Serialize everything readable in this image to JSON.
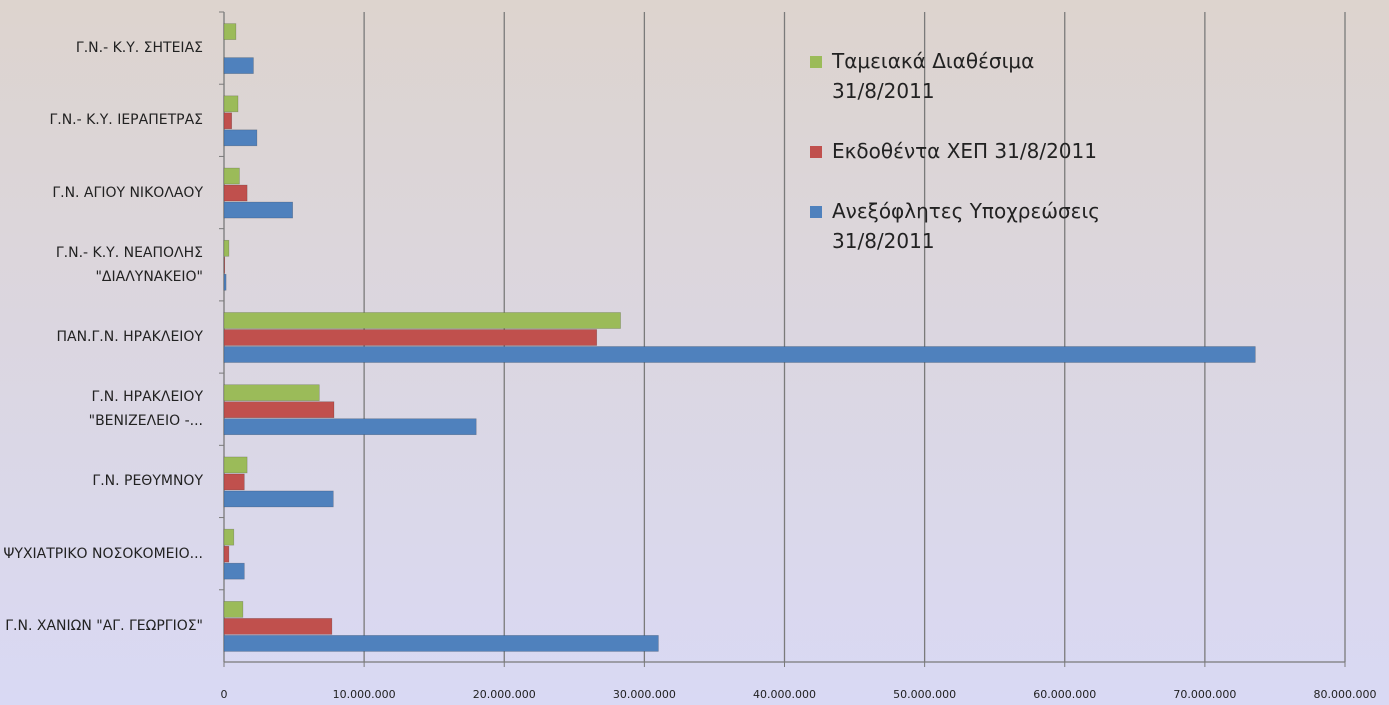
{
  "chart_data": {
    "type": "hbar",
    "categories": [
      "Γ.Ν.- Κ.Υ. ΣΗΤΕΙΑΣ",
      "Γ.Ν.- Κ.Υ. ΙΕΡΑΠΕΤΡΑΣ",
      "Γ.Ν. ΑΓΙΟΥ ΝΙΚΟΛΑΟΥ",
      "Γ.Ν.- Κ.Υ. ΝΕΑΠΟΛΗΣ \"ΔΙΑΛΥΝΑΚΕΙΟ\"",
      "ΠΑΝ.Γ.Ν. ΗΡΑΚΛΕΙΟΥ",
      "Γ.Ν. ΗΡΑΚΛΕΙΟΥ \"ΒΕΝΙΖΕΛΕΙΟ -...",
      "Γ.Ν. ΡΕΘΥΜΝΟΥ",
      "ΨΥΧΙΑΤΡΙΚΟ ΝΟΣΟΚΟΜΕΙΟ...",
      "Γ.Ν. ΧΑΝΙΩΝ \"ΑΓ. ΓΕΩΡΓΙΟΣ\""
    ],
    "series": [
      {
        "name": "Ταμειακά Διαθέσιμα 31/8/2011",
        "color": "#9bbb59",
        "values": [
          850000,
          1000000,
          1100000,
          350000,
          28300000,
          6800000,
          1650000,
          700000,
          1350000
        ]
      },
      {
        "name": "Εκδοθέντα ΧΕΠ 31/8/2011",
        "color": "#c0504d",
        "values": [
          0,
          550000,
          1650000,
          50000,
          26600000,
          7850000,
          1450000,
          350000,
          7700000
        ]
      },
      {
        "name": "Ανεξόφλητες Υποχρεώσεις 31/8/2011",
        "color": "#4f81bd",
        "values": [
          2100000,
          2350000,
          4900000,
          150000,
          73600000,
          18000000,
          7800000,
          1450000,
          31000000
        ]
      }
    ],
    "xlim": [
      0,
      80000000
    ],
    "xticks": [
      0,
      {
        "value": 10000000,
        "label": "10.000.000"
      },
      {
        "value": 20000000,
        "label": "20.000.000"
      },
      {
        "value": 30000000,
        "label": "30.000.000"
      },
      {
        "value": 40000000,
        "label": "40.000.000"
      },
      {
        "value": 50000000,
        "label": "50.000.000"
      },
      {
        "value": 60000000,
        "label": "60.000.000"
      },
      {
        "value": 70000000,
        "label": "70.000.000"
      },
      {
        "value": 80000000,
        "label": "80.000.000"
      }
    ],
    "grid": true
  }
}
